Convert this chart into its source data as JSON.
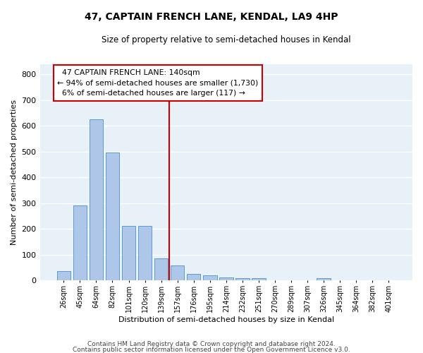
{
  "title1": "47, CAPTAIN FRENCH LANE, KENDAL, LA9 4HP",
  "title2": "Size of property relative to semi-detached houses in Kendal",
  "xlabel": "Distribution of semi-detached houses by size in Kendal",
  "ylabel": "Number of semi-detached properties",
  "footer1": "Contains HM Land Registry data © Crown copyright and database right 2024.",
  "footer2": "Contains public sector information licensed under the Open Government Licence v3.0.",
  "bar_labels": [
    "26sqm",
    "45sqm",
    "64sqm",
    "82sqm",
    "101sqm",
    "120sqm",
    "139sqm",
    "157sqm",
    "176sqm",
    "195sqm",
    "214sqm",
    "232sqm",
    "251sqm",
    "270sqm",
    "289sqm",
    "307sqm",
    "326sqm",
    "345sqm",
    "364sqm",
    "382sqm",
    "401sqm"
  ],
  "bar_values": [
    35,
    290,
    625,
    495,
    210,
    210,
    85,
    58,
    25,
    18,
    12,
    8,
    8,
    0,
    0,
    0,
    7,
    0,
    0,
    0,
    0
  ],
  "bar_color": "#aec6e8",
  "bar_edge_color": "#5b9bd5",
  "background_color": "#e8f0f8",
  "grid_color": "#ffffff",
  "property_label": "47 CAPTAIN FRENCH LANE: 140sqm",
  "pct_smaller": 94,
  "n_smaller": 1730,
  "pct_larger": 6,
  "n_larger": 117,
  "vline_x_index": 6.5,
  "annotation_box_color": "#ffffff",
  "annotation_box_edge": "#cc0000",
  "vline_color": "#cc0000",
  "ylim": [
    0,
    840
  ],
  "yticks": [
    0,
    100,
    200,
    300,
    400,
    500,
    600,
    700,
    800
  ]
}
